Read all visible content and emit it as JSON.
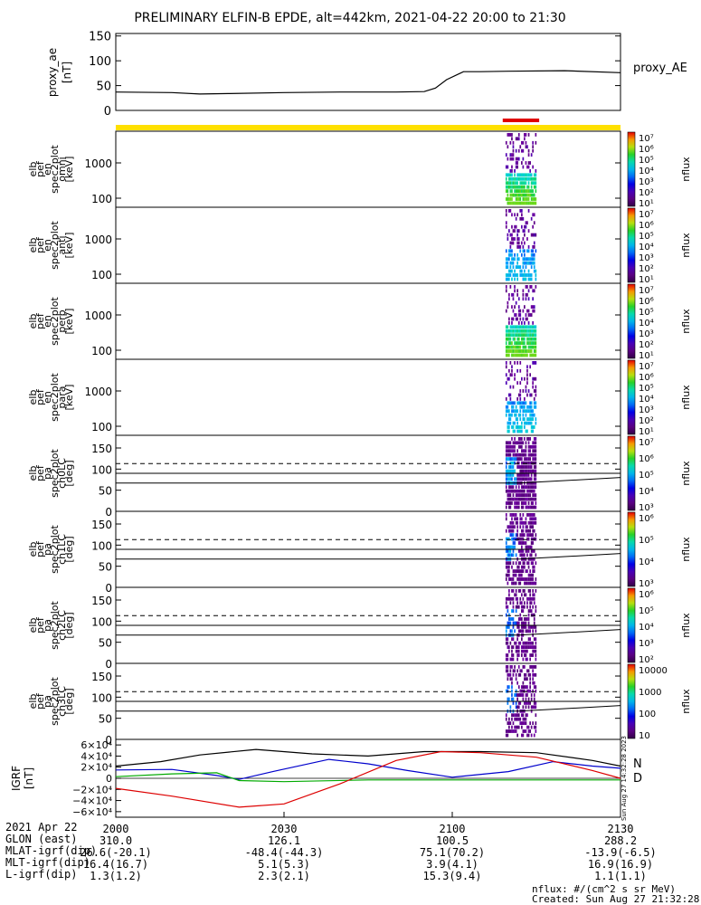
{
  "title": "PRELIMINARY ELFIN-B EPDE, alt=442km, 2021-04-22 20:00 to 21:30",
  "colors": {
    "yellow_bar": "#ffe000",
    "red_bar": "#e00000",
    "n_label": "#0000dd",
    "d_label": "#e05000"
  },
  "chart_data": {
    "type": "multi-panel time series / spectrogram",
    "time_range_min": [
      0,
      90
    ],
    "x_ticks": [
      "2000",
      "2030",
      "2100",
      "2130"
    ],
    "ae_panel": {
      "ylabel": [
        "proxy_ae",
        "[nT]"
      ],
      "legend": "proxy_AE",
      "yticks": [
        "150",
        "100",
        "50",
        "0"
      ],
      "ylim": [
        0,
        155
      ],
      "series": {
        "t": [
          0,
          10,
          15,
          20,
          30,
          40,
          50,
          55,
          57,
          59,
          62,
          65,
          70,
          80,
          90
        ],
        "v": [
          37,
          36,
          33,
          34,
          36,
          37,
          37,
          38,
          45,
          62,
          78,
          78,
          79,
          80,
          76
        ]
      }
    },
    "orbit_bar": {
      "red_segment_min": [
        69.0,
        75.5
      ]
    },
    "spectrogram_panels": [
      {
        "name": "omni-panel",
        "ylabel": [
          "elb",
          "pef",
          "en",
          "spec2plot",
          "omni",
          "[keV]"
        ],
        "yticks": [
          "1000",
          "100"
        ],
        "cbar_ticks": [
          "10⁷",
          "10⁶",
          "10⁵",
          "10⁴",
          "10³",
          "10²",
          "10¹"
        ],
        "cbar_label": "nflux",
        "intensity": 1.0
      },
      {
        "name": "anti-panel",
        "ylabel": [
          "elb",
          "pef",
          "en",
          "spec2plot",
          "anti",
          "[keV]"
        ],
        "yticks": [
          "1000",
          "100"
        ],
        "cbar_ticks": [
          "10⁷",
          "10⁶",
          "10⁵",
          "10⁴",
          "10³",
          "10²",
          "10¹"
        ],
        "cbar_label": "nflux",
        "intensity": 0.45
      },
      {
        "name": "perp-panel",
        "ylabel": [
          "elb",
          "pef",
          "en",
          "spec2plot",
          "perp",
          "[keV]"
        ],
        "yticks": [
          "1000",
          "100"
        ],
        "cbar_ticks": [
          "10⁷",
          "10⁶",
          "10⁵",
          "10⁴",
          "10³",
          "10²",
          "10¹"
        ],
        "cbar_label": "nflux",
        "intensity": 1.0
      },
      {
        "name": "para-panel",
        "ylabel": [
          "elb",
          "pef",
          "en",
          "spec2plot",
          "para",
          "[keV]"
        ],
        "yticks": [
          "1000",
          "100"
        ],
        "cbar_ticks": [
          "10⁷",
          "10⁶",
          "10⁵",
          "10⁴",
          "10³",
          "10²",
          "10¹"
        ],
        "cbar_label": "nflux",
        "intensity": 0.5
      }
    ],
    "pitch_angle_panels": [
      {
        "name": "ch0lc-panel",
        "ylabel": [
          "elb",
          "pef",
          "pa",
          "spec2plot",
          "ch0LC",
          "[deg]"
        ],
        "yticks": [
          "150",
          "100",
          "50",
          "0"
        ],
        "cbar_ticks": [
          "10⁷",
          "10⁶",
          "10⁵",
          "10⁴",
          "10³"
        ],
        "cbar_label": "nflux",
        "intensity": 1.0
      },
      {
        "name": "ch1lc-panel",
        "ylabel": [
          "elb",
          "pef",
          "pa",
          "spec2plot",
          "ch1LC",
          "[deg]"
        ],
        "yticks": [
          "150",
          "100",
          "50",
          "0"
        ],
        "cbar_ticks": [
          "10⁶",
          "10⁵",
          "10⁴",
          "10³"
        ],
        "cbar_label": "nflux",
        "intensity": 0.7
      },
      {
        "name": "ch2lc-panel",
        "ylabel": [
          "elb",
          "pef",
          "pa",
          "spec2plot",
          "ch2LC",
          "[deg]"
        ],
        "yticks": [
          "150",
          "100",
          "50",
          "0"
        ],
        "cbar_ticks": [
          "10⁶",
          "10⁵",
          "10⁴",
          "10³",
          "10²"
        ],
        "cbar_label": "nflux",
        "intensity": 0.55
      },
      {
        "name": "ch3lc-panel",
        "ylabel": [
          "elb",
          "pef",
          "pa",
          "spec2plot",
          "ch3LC",
          "[deg]"
        ],
        "yticks": [
          "150",
          "100",
          "50",
          "0"
        ],
        "cbar_ticks": [
          "10000",
          "1000",
          "100",
          "10"
        ],
        "cbar_label": "nflux",
        "intensity": 0.45
      }
    ],
    "igrf_panel": {
      "ylabel": [
        "IGRF",
        "[nT]"
      ],
      "yticks": [
        "6×10⁴",
        "4×10⁴",
        "2×10⁴",
        "0",
        "−2×10⁴",
        "−4×10⁴",
        "−6×10⁴"
      ],
      "ylim": [
        -70000,
        70000
      ],
      "legend": [
        "N",
        "D"
      ],
      "series": [
        {
          "name": "black",
          "color": "#000000",
          "t": [
            0,
            8,
            15,
            25,
            35,
            45,
            55,
            65,
            75,
            85,
            90
          ],
          "v": [
            22000,
            30000,
            42000,
            52000,
            44000,
            40000,
            48000,
            48000,
            46000,
            32000,
            22000
          ]
        },
        {
          "name": "blue",
          "color": "#0000cc",
          "t": [
            0,
            10,
            18,
            22,
            28,
            38,
            45,
            52,
            60,
            70,
            78,
            85,
            90
          ],
          "v": [
            15000,
            16000,
            5000,
            -2000,
            12000,
            34000,
            26000,
            14000,
            2000,
            12000,
            30000,
            22000,
            18000
          ]
        },
        {
          "name": "green",
          "color": "#00aa00",
          "t": [
            0,
            10,
            18,
            22,
            30,
            45,
            60,
            75,
            85,
            90
          ],
          "v": [
            3000,
            8000,
            10000,
            -4000,
            -6000,
            -3000,
            -3000,
            -3000,
            -3000,
            -3000
          ]
        },
        {
          "name": "red",
          "color": "#dd0000",
          "t": [
            0,
            10,
            22,
            30,
            40,
            50,
            58,
            65,
            75,
            85,
            90
          ],
          "v": [
            -18000,
            -32000,
            -52000,
            -46000,
            -10000,
            32000,
            48000,
            46000,
            38000,
            14000,
            0
          ]
        }
      ]
    }
  },
  "footer": {
    "date": "2021 Apr 22",
    "rows": [
      {
        "label": "GLON (east)",
        "values": [
          "310.0",
          "126.1",
          "100.5",
          "288.2"
        ]
      },
      {
        "label": "MLAT-igrf(dip)",
        "values": [
          "26.6(-20.1)",
          "-48.4(-44.3)",
          "75.1(70.2)",
          "-13.9(-6.5)"
        ]
      },
      {
        "label": "MLT-igrf(dip)",
        "values": [
          "16.4(16.7)",
          "5.1(5.3)",
          "3.9(4.1)",
          "16.9(16.9)"
        ]
      },
      {
        "label": "L-igrf(dip)",
        "values": [
          "1.3(1.2)",
          "2.3(2.1)",
          "15.3(9.4)",
          "1.1(1.1)"
        ]
      }
    ],
    "units_note": "nflux: #/(cm^2 s sr MeV)",
    "created": "Created: Sun Aug 27 21:32:28 2023",
    "side_stamp": "Sun Aug 27 14:32:28 2023"
  }
}
